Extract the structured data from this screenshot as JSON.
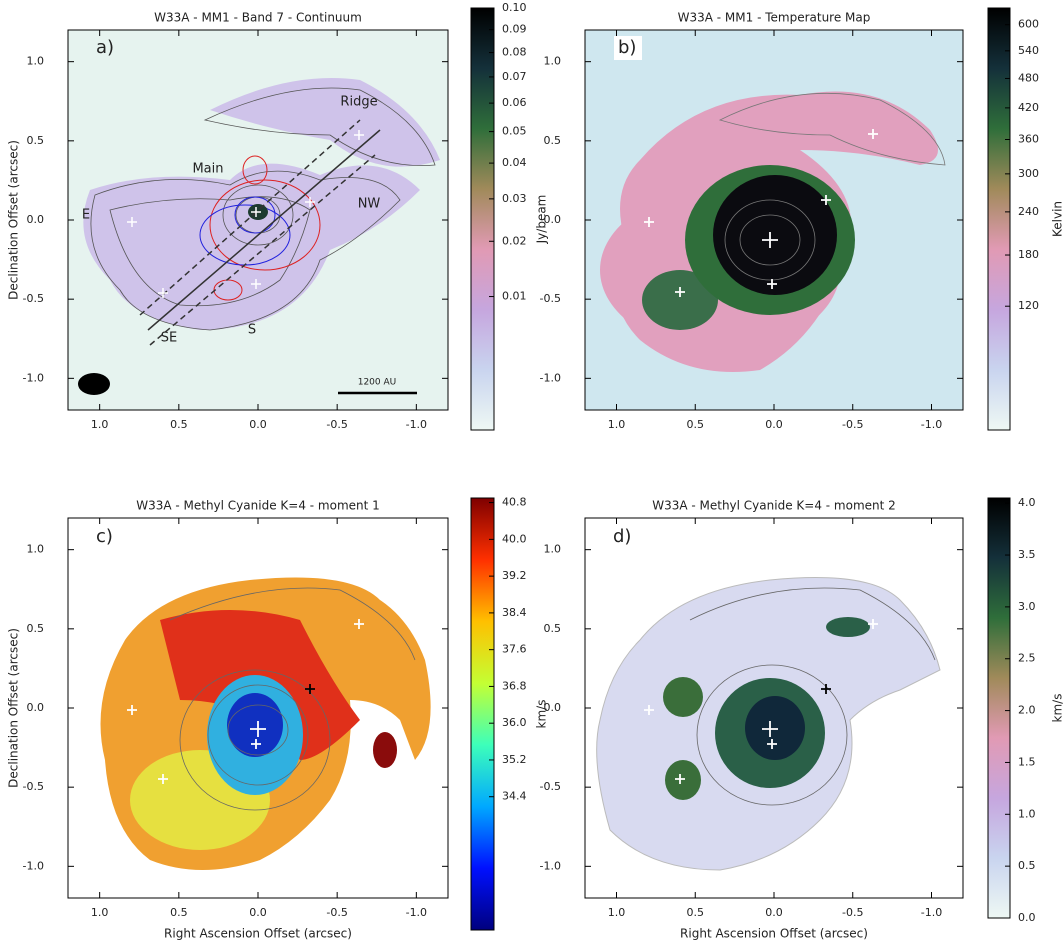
{
  "chart_data": [
    {
      "type": "heatmap",
      "title": "W33A - MM1 - Band 7 - Continuum",
      "panel_label": "a)",
      "ylabel": "Declination Offset (arcsec)",
      "xlim": [
        1.2,
        -1.2
      ],
      "ylim": [
        -1.2,
        1.2
      ],
      "xticks": [
        {
          "value": 1,
          "label": "1.0"
        },
        0.5,
        {
          "value": 0,
          "label": "0.0"
        },
        -0.5,
        {
          "value": -1,
          "label": "-1.0"
        }
      ],
      "yticks": [
        {
          "value": 1,
          "label": "1.0"
        },
        0.5,
        {
          "value": 0,
          "label": "0.0"
        },
        -0.5,
        {
          "value": -1,
          "label": "-1.0"
        }
      ],
      "annotations": [
        "Ridge",
        "Main",
        "E",
        "NW",
        "SE",
        "S",
        "1200 AU"
      ],
      "colorbar": {
        "label": "Jy/beam",
        "scale": "sqrt",
        "clim": [
          0,
          0.1
        ],
        "colors": [
          "#eef8f4",
          "#c9d4ef",
          "#c6a6de",
          "#e19ab4",
          "#a08a5a",
          "#2f6e3a",
          "#14303a",
          "#000000"
        ],
        "ticks": [
          0.01,
          0.02,
          0.03,
          0.04,
          0.05,
          0.06,
          0.07,
          0.08,
          0.09,
          {
            "value": 0.1,
            "label": "0.10"
          }
        ]
      }
    },
    {
      "type": "heatmap",
      "title": "W33A - MM1 - Temperature Map",
      "panel_label": "b)",
      "xlim": [
        1.2,
        -1.2
      ],
      "ylim": [
        -1.2,
        1.2
      ],
      "xticks": [
        {
          "value": 1,
          "label": "1.0"
        },
        0.5,
        {
          "value": 0,
          "label": "0.0"
        },
        -0.5,
        {
          "value": -1,
          "label": "-1.0"
        }
      ],
      "yticks": [
        {
          "value": 1,
          "label": "1.0"
        },
        0.5,
        {
          "value": 0,
          "label": "0.0"
        },
        -0.5,
        {
          "value": -1,
          "label": "-1.0"
        }
      ],
      "colorbar": {
        "label": "Kelvin",
        "scale": "sqrt",
        "clim": [
          25,
          640
        ],
        "colors": [
          "#eef8f4",
          "#c9d4ef",
          "#c6a6de",
          "#e19ab4",
          "#a08a5a",
          "#2f6e3a",
          "#14303a",
          "#000000"
        ],
        "ticks": [
          120,
          180,
          240,
          300,
          360,
          420,
          480,
          540,
          600
        ]
      }
    },
    {
      "type": "heatmap",
      "title": "W33A - Methyl Cyanide K=4 - moment 1",
      "panel_label": "c)",
      "ylabel": "Declination Offset (arcsec)",
      "xlabel": "Right Ascension Offset (arcsec)",
      "xlim": [
        1.2,
        -1.2
      ],
      "ylim": [
        -1.2,
        1.2
      ],
      "xticks": [
        {
          "value": 1,
          "label": "1.0"
        },
        0.5,
        {
          "value": 0,
          "label": "0.0"
        },
        -0.5,
        {
          "value": -1,
          "label": "-1.0"
        }
      ],
      "yticks": [
        {
          "value": 1,
          "label": "1.0"
        },
        0.5,
        {
          "value": 0,
          "label": "0.0"
        },
        -0.5,
        {
          "value": -1,
          "label": "-1.0"
        }
      ],
      "colorbar": {
        "label": "km/s",
        "scale": "linear",
        "clim": [
          31.5,
          40.9
        ],
        "colors": [
          "#00007f",
          "#0010ff",
          "#00a8ff",
          "#3dffba",
          "#c4ff33",
          "#ffc000",
          "#ff3000",
          "#7f0000"
        ],
        "ticks": [
          34.4,
          35.2,
          {
            "value": 36,
            "label": "36.0"
          },
          36.8,
          37.6,
          38.4,
          39.2,
          {
            "value": 40,
            "label": "40.0"
          },
          40.8
        ]
      }
    },
    {
      "type": "heatmap",
      "title": "W33A - Methyl Cyanide K=4 - moment 2",
      "panel_label": "d)",
      "xlabel": "Right Ascension Offset (arcsec)",
      "xlim": [
        1.2,
        -1.2
      ],
      "ylim": [
        -1.2,
        1.2
      ],
      "xticks": [
        {
          "value": 1,
          "label": "1.0"
        },
        0.5,
        {
          "value": 0,
          "label": "0.0"
        },
        -0.5,
        {
          "value": -1,
          "label": "-1.0"
        }
      ],
      "yticks": [
        {
          "value": 1,
          "label": "1.0"
        },
        0.5,
        {
          "value": 0,
          "label": "0.0"
        },
        -0.5,
        {
          "value": -1,
          "label": "-1.0"
        }
      ],
      "colorbar": {
        "label": "km/s",
        "scale": "linear",
        "clim": [
          0,
          4.05
        ],
        "colors": [
          "#eef8f4",
          "#c9d4ef",
          "#c6a6de",
          "#e19ab4",
          "#a08a5a",
          "#2f6e3a",
          "#14303a",
          "#000000"
        ],
        "ticks": [
          {
            "value": 0,
            "label": "0.0"
          },
          0.5,
          {
            "value": 1,
            "label": "1.0"
          },
          1.5,
          {
            "value": 2,
            "label": "2.0"
          },
          2.5,
          {
            "value": 3,
            "label": "3.0"
          },
          3.5,
          {
            "value": 4,
            "label": "4.0"
          }
        ]
      }
    }
  ]
}
